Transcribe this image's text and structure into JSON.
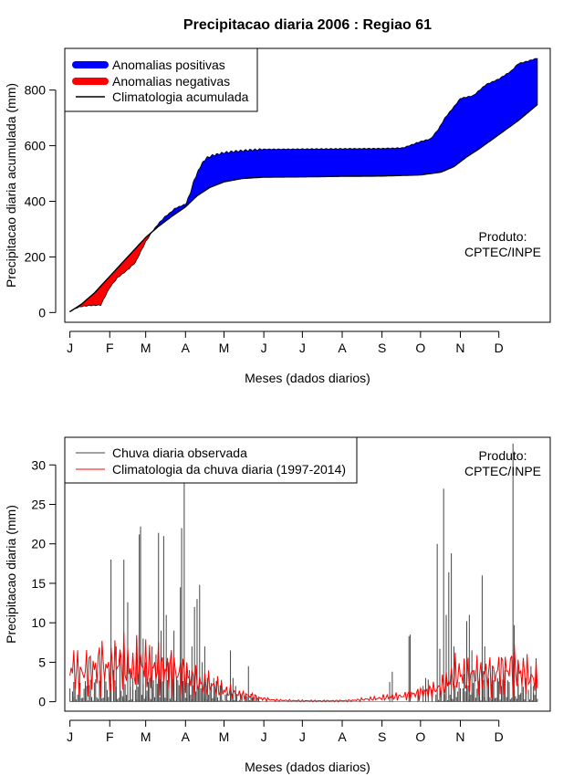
{
  "title": "Precipitacao diaria 2006 : Regiao 61",
  "chart_data": [
    {
      "type": "area",
      "name": "accumulated",
      "ylabel": "Precipitacao diaria acumulada (mm)",
      "xlabel": "Meses (dados diarios)",
      "xlim": [
        -3,
        375
      ],
      "ylim": [
        -35,
        950
      ],
      "yticks": [
        0,
        200,
        400,
        600,
        800
      ],
      "months": [
        "J",
        "F",
        "M",
        "A",
        "M",
        "J",
        "J",
        "A",
        "S",
        "O",
        "N",
        "D"
      ],
      "month_starts": [
        1,
        32,
        60,
        91,
        121,
        152,
        182,
        213,
        244,
        274,
        305,
        335
      ],
      "legend": [
        "Anomalias positivas",
        "Anomalias negativas",
        "Climatologia acumulada"
      ],
      "legend_colors": [
        "#0000ff",
        "#ff0000",
        "#000000"
      ],
      "product_label_1": "Produto:",
      "product_label_2": "CPTEC/INPE",
      "climatology_knots": [
        [
          1,
          3
        ],
        [
          10,
          30
        ],
        [
          20,
          70
        ],
        [
          31,
          125
        ],
        [
          40,
          170
        ],
        [
          50,
          220
        ],
        [
          60,
          270
        ],
        [
          70,
          310
        ],
        [
          80,
          345
        ],
        [
          91,
          380
        ],
        [
          100,
          420
        ],
        [
          110,
          450
        ],
        [
          121,
          470
        ],
        [
          135,
          482
        ],
        [
          152,
          487
        ],
        [
          182,
          488
        ],
        [
          213,
          490
        ],
        [
          244,
          491
        ],
        [
          274,
          495
        ],
        [
          290,
          505
        ],
        [
          300,
          525
        ],
        [
          310,
          560
        ],
        [
          320,
          590
        ],
        [
          335,
          640
        ],
        [
          350,
          690
        ],
        [
          365,
          748
        ]
      ],
      "observed_knots": [
        [
          1,
          3
        ],
        [
          5,
          15
        ],
        [
          10,
          22
        ],
        [
          16,
          25
        ],
        [
          25,
          27
        ],
        [
          32,
          90
        ],
        [
          38,
          125
        ],
        [
          45,
          150
        ],
        [
          52,
          180
        ],
        [
          60,
          255
        ],
        [
          65,
          290
        ],
        [
          70,
          320
        ],
        [
          75,
          345
        ],
        [
          78,
          355
        ],
        [
          83,
          375
        ],
        [
          91,
          390
        ],
        [
          94,
          420
        ],
        [
          98,
          480
        ],
        [
          103,
          530
        ],
        [
          107,
          555
        ],
        [
          112,
          565
        ],
        [
          121,
          575
        ],
        [
          130,
          580
        ],
        [
          140,
          584
        ],
        [
          152,
          587
        ],
        [
          182,
          588
        ],
        [
          213,
          589
        ],
        [
          244,
          590
        ],
        [
          260,
          592
        ],
        [
          265,
          600
        ],
        [
          274,
          615
        ],
        [
          282,
          625
        ],
        [
          288,
          660
        ],
        [
          293,
          700
        ],
        [
          300,
          740
        ],
        [
          305,
          770
        ],
        [
          315,
          780
        ],
        [
          325,
          820
        ],
        [
          335,
          840
        ],
        [
          345,
          870
        ],
        [
          350,
          895
        ],
        [
          358,
          905
        ],
        [
          365,
          915
        ]
      ]
    },
    {
      "type": "bar",
      "name": "daily",
      "ylabel": "Precipitacao diaria (mm)",
      "xlabel": "Meses (dados diarios)",
      "xlim": [
        -3,
        375
      ],
      "ylim": [
        -1.2,
        33.5
      ],
      "yticks": [
        0,
        5,
        10,
        15,
        20,
        25,
        30
      ],
      "months": [
        "J",
        "F",
        "M",
        "A",
        "M",
        "J",
        "J",
        "A",
        "S",
        "O",
        "N",
        "D"
      ],
      "month_starts": [
        1,
        32,
        60,
        91,
        121,
        152,
        182,
        213,
        244,
        274,
        305,
        335
      ],
      "legend": [
        "Chuva diaria observada",
        "Climatologia da chuva diaria (1997-2014)"
      ],
      "legend_colors": [
        "#444444",
        "#ff0000"
      ],
      "product_label_1": "Produto:",
      "product_label_2": "CPTEC/INPE",
      "observed_peaks": [
        [
          4,
          2.5
        ],
        [
          8,
          1.5
        ],
        [
          14,
          2.0
        ],
        [
          30,
          1.5
        ],
        [
          33,
          18
        ],
        [
          35,
          4
        ],
        [
          37,
          7
        ],
        [
          40,
          6
        ],
        [
          43,
          18
        ],
        [
          46,
          12.6
        ],
        [
          48,
          4
        ],
        [
          50,
          3
        ],
        [
          53,
          8
        ],
        [
          55,
          21.2
        ],
        [
          56,
          22.2
        ],
        [
          58,
          8
        ],
        [
          60,
          5
        ],
        [
          63,
          3
        ],
        [
          65,
          7
        ],
        [
          68,
          6
        ],
        [
          70,
          21.4
        ],
        [
          72,
          9
        ],
        [
          74,
          21
        ],
        [
          76,
          11
        ],
        [
          78,
          5
        ],
        [
          80,
          6
        ],
        [
          82,
          9
        ],
        [
          84,
          3
        ],
        [
          87,
          14.5
        ],
        [
          88,
          22
        ],
        [
          90,
          28
        ],
        [
          92,
          5
        ],
        [
          94,
          4
        ],
        [
          96,
          7
        ],
        [
          98,
          12
        ],
        [
          100,
          13
        ],
        [
          102,
          14.8
        ],
        [
          104,
          5
        ],
        [
          106,
          7
        ],
        [
          108,
          3
        ],
        [
          110,
          2
        ],
        [
          113,
          3
        ],
        [
          115,
          2
        ],
        [
          126,
          6.5
        ],
        [
          128,
          3
        ],
        [
          130,
          2
        ],
        [
          140,
          4.5
        ],
        [
          142,
          1
        ],
        [
          250,
          2.5
        ],
        [
          252,
          3.8
        ],
        [
          265,
          8.3
        ],
        [
          266,
          8.5
        ],
        [
          272,
          1.5
        ],
        [
          276,
          2
        ],
        [
          278,
          3
        ],
        [
          280,
          2.8
        ],
        [
          283,
          1.5
        ],
        [
          287,
          20
        ],
        [
          289,
          6.7
        ],
        [
          292,
          27
        ],
        [
          294,
          11
        ],
        [
          296,
          16.4
        ],
        [
          298,
          18.8
        ],
        [
          300,
          7
        ],
        [
          304,
          2.5
        ],
        [
          308,
          3.5
        ],
        [
          310,
          10.2
        ],
        [
          312,
          11
        ],
        [
          314,
          6.5
        ],
        [
          316,
          4
        ],
        [
          320,
          3
        ],
        [
          322,
          16
        ],
        [
          324,
          7
        ],
        [
          327,
          3
        ],
        [
          330,
          4
        ],
        [
          334,
          3
        ],
        [
          337,
          2
        ],
        [
          340,
          4
        ],
        [
          343,
          2.5
        ],
        [
          346,
          32.7
        ],
        [
          347,
          9.7
        ],
        [
          350,
          5
        ],
        [
          353,
          3
        ],
        [
          356,
          3
        ],
        [
          360,
          4.5
        ],
        [
          362,
          2
        ],
        [
          364,
          5.5
        ]
      ],
      "climatology_knots": [
        [
          1,
          4.5
        ],
        [
          5,
          4
        ],
        [
          10,
          3.5
        ],
        [
          15,
          4.2
        ],
        [
          20,
          4
        ],
        [
          25,
          5
        ],
        [
          30,
          4
        ],
        [
          35,
          4.5
        ],
        [
          40,
          5.2
        ],
        [
          45,
          4.5
        ],
        [
          50,
          4
        ],
        [
          55,
          4.8
        ],
        [
          60,
          4.5
        ],
        [
          65,
          4
        ],
        [
          70,
          4.3
        ],
        [
          75,
          3.8
        ],
        [
          80,
          4.2
        ],
        [
          85,
          3.5
        ],
        [
          90,
          3.5
        ],
        [
          95,
          3
        ],
        [
          100,
          2.5
        ],
        [
          105,
          2.2
        ],
        [
          110,
          2.2
        ],
        [
          115,
          1.8
        ],
        [
          120,
          1.5
        ],
        [
          125,
          1.2
        ],
        [
          130,
          1
        ],
        [
          135,
          0.8
        ],
        [
          140,
          0.8
        ],
        [
          145,
          0.6
        ],
        [
          150,
          0.4
        ],
        [
          160,
          0.2
        ],
        [
          170,
          0.15
        ],
        [
          180,
          0.12
        ],
        [
          200,
          0.1
        ],
        [
          220,
          0.15
        ],
        [
          230,
          0.3
        ],
        [
          240,
          0.4
        ],
        [
          250,
          0.6
        ],
        [
          260,
          0.7
        ],
        [
          270,
          1.0
        ],
        [
          280,
          1.3
        ],
        [
          290,
          1.8
        ],
        [
          295,
          2.5
        ],
        [
          300,
          3.2
        ],
        [
          305,
          3.6
        ],
        [
          310,
          3.0
        ],
        [
          315,
          3.5
        ],
        [
          320,
          3.2
        ],
        [
          325,
          3.6
        ],
        [
          330,
          3.3
        ],
        [
          335,
          4
        ],
        [
          340,
          3.8
        ],
        [
          345,
          4.5
        ],
        [
          350,
          3.8
        ],
        [
          355,
          3.5
        ],
        [
          360,
          3
        ],
        [
          365,
          2.8
        ]
      ]
    }
  ]
}
